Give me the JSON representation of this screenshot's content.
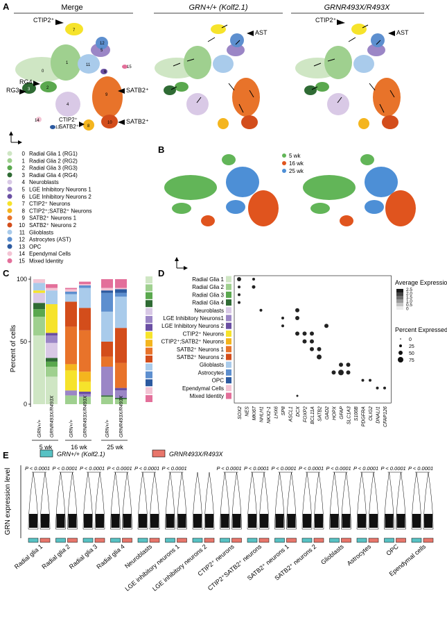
{
  "panels": {
    "A": {
      "letter": "A",
      "titles": [
        "Merge",
        "GRN+/+ (Kolf2.1)",
        "GRNR493X/R493X"
      ],
      "labels": {
        "ctip2": "CTIP2⁺",
        "ast": "AST",
        "satb2": "SATB2⁺",
        "rg4": "RG4",
        "rg3": "RG3",
        "ctip2_satb2_a": "CTIP2⁺",
        "ctip2_satb2_b": "SATB2⁺"
      },
      "cluster_numbers": [
        "0",
        "1",
        "2",
        "3",
        "4",
        "5",
        "6",
        "7",
        "8",
        "9",
        "10",
        "11",
        "12",
        "13",
        "14",
        "15"
      ],
      "legend": [
        {
          "num": "0",
          "label": "Radial Glia 1 (RG1)",
          "color": "#cfe6c4"
        },
        {
          "num": "1",
          "label": "Radial Glia 2 (RG2)",
          "color": "#9fd08f"
        },
        {
          "num": "2",
          "label": "Radial Glia 3 (RG3)",
          "color": "#5aa84e"
        },
        {
          "num": "3",
          "label": "Radial Glia 4 (RG4)",
          "color": "#2f6b34"
        },
        {
          "num": "4",
          "label": "Neuroblasts",
          "color": "#d9c9e6"
        },
        {
          "num": "5",
          "label": "LGE Inhibitory Neurons 1",
          "color": "#9b86c6"
        },
        {
          "num": "6",
          "label": "LGE Inhibitory Neurons 2",
          "color": "#6a4fa3"
        },
        {
          "num": "7",
          "label": "CTIP2⁺ Neurons",
          "color": "#f6e32b"
        },
        {
          "num": "8",
          "label": "CTIP2⁺;SATB2⁺ Neurons",
          "color": "#f4b51e"
        },
        {
          "num": "9",
          "label": "SATB2⁺ Neurons 1",
          "color": "#e8732a"
        },
        {
          "num": "10",
          "label": "SATB2⁺ Neurons 2",
          "color": "#d34d1b"
        },
        {
          "num": "11",
          "label": "Glioblasts",
          "color": "#a9cbeb"
        },
        {
          "num": "12",
          "label": "Astrocytes (AST)",
          "color": "#5d8fcf"
        },
        {
          "num": "13",
          "label": "OPC",
          "color": "#2c5aa0"
        },
        {
          "num": "14",
          "label": "Ependymal Cells",
          "color": "#f3c4d4"
        },
        {
          "num": "15",
          "label": "Mixed Identity",
          "color": "#e36f9a"
        }
      ]
    },
    "B": {
      "letter": "B",
      "legend": [
        {
          "label": "5 wk",
          "color": "#62b558"
        },
        {
          "label": "16 wk",
          "color": "#e0541e"
        },
        {
          "label": "25 wk",
          "color": "#4d8fd6"
        }
      ]
    },
    "C": {
      "letter": "C",
      "ylabel": "Percent of cells",
      "yticks": [
        "0",
        "50",
        "100"
      ],
      "timepoints": [
        "5 wk",
        "16 wk",
        "25 wk"
      ],
      "genotype_wt": "GRN+/+",
      "genotype_mut": "GRNR493X/R493X"
    },
    "D": {
      "letter": "D",
      "rows": [
        "Radial Glia 1",
        "Radial Glia 2",
        "Radial Glia 3",
        "Radial Glia 4",
        "Neuroblasts",
        "LGE Inhibitory Neurons1",
        "LGE Inhibitory Neurons 2",
        "CTIP2⁺ Neurons",
        "CTIP2⁺;SATB2⁺ Neurons",
        "SATB2⁺ Neurons 1",
        "SATB2⁺ Neurons 2",
        "Glioblasts",
        "Astrocytes",
        "OPC",
        "Ependymal Cells",
        "Mixed Identity"
      ],
      "genes": [
        "SOX2",
        "NES",
        "MKI67",
        "NHLH1",
        "NKX2-1",
        "LHX6",
        "SP8",
        "ASCL1",
        "DCX",
        "FOXP2",
        "BCL11A",
        "SATB2",
        "GAD2",
        "HOPX",
        "GFAP",
        "SLC1A3",
        "S100B",
        "PDGFRA",
        "OLIG2",
        "DNALI1",
        "CFAP126"
      ],
      "avg_title": "Average Expression",
      "avg_ticks": [
        "2.5",
        "2.0",
        "1.5",
        "1.0",
        "0.5",
        "0"
      ],
      "pct_title": "Percent Expressed",
      "pct_ticks": [
        "0",
        "25",
        "50",
        "75"
      ]
    },
    "E": {
      "letter": "E",
      "ylabel": "GRN expression level",
      "legend_wt": "GRN+/+ (Kolf2.1)",
      "legend_mut": "GRNR493X/R493X",
      "pvalue": "P < 0.0001",
      "groups": [
        "Radial glia 1",
        "Radial glia 2",
        "Radial glia 3",
        "Radial glia 4",
        "Neuroblasts",
        "LGE inhibitory neurons 1",
        "LGE inhibitory neurons 2",
        "CTIP2⁺ neurons",
        "CTIP2⁺SATB2⁺ neurons",
        "SATB2⁺ neurons 1",
        "SATB2⁺ neurons 2",
        "Glioblasts",
        "Astrocytes",
        "OPC",
        "Ependymal cells"
      ],
      "pvalue_groups": [
        0,
        1,
        2,
        3,
        4,
        5,
        7,
        8,
        9,
        10,
        11,
        12,
        13,
        14
      ],
      "colors": {
        "wt": "#58c2c4",
        "mut": "#e8766b"
      }
    }
  },
  "chart_data": {
    "type": "bar",
    "title": "",
    "ylabel": "Percent of cells",
    "ylim": [
      0,
      100
    ],
    "categories": [
      "5 wk GRN+/+",
      "5 wk GRNR493X/R493X",
      "16 wk GRN+/+",
      "16 wk GRNR493X/R493X",
      "25 wk GRN+/+",
      "25 wk GRNR493X/R493X"
    ],
    "series": [
      {
        "name": "Radial Glia 1 (RG1)",
        "values": [
          55,
          22,
          0,
          0,
          0,
          0
        ]
      },
      {
        "name": "Radial Glia 2 (RG2)",
        "values": [
          15,
          8,
          7,
          6,
          6,
          4
        ]
      },
      {
        "name": "Radial Glia 3 (RG3)",
        "values": [
          6,
          4,
          0,
          0,
          0,
          0
        ]
      },
      {
        "name": "Radial Glia 4 (RG4)",
        "values": [
          5,
          3,
          0,
          0,
          1,
          1
        ]
      },
      {
        "name": "Neuroblasts",
        "values": [
          8,
          12,
          0,
          0,
          0,
          0
        ]
      },
      {
        "name": "LGE Inhibitory Neurons 1",
        "values": [
          0,
          6,
          4,
          2,
          23,
          6
        ]
      },
      {
        "name": "LGE Inhibitory Neurons 2",
        "values": [
          0,
          2,
          0,
          2,
          0,
          2
        ]
      },
      {
        "name": "CTIP2⁺ Neurons",
        "values": [
          2,
          23,
          16,
          8,
          0,
          0
        ]
      },
      {
        "name": "CTIP2⁺;SATB2⁺ Neurons",
        "values": [
          0,
          0,
          5,
          8,
          0,
          0
        ]
      },
      {
        "name": "SATB2⁺ Neurons 1",
        "values": [
          0,
          0,
          30,
          33,
          8,
          20
        ]
      },
      {
        "name": "SATB2⁺ Neurons 2",
        "values": [
          0,
          0,
          20,
          18,
          12,
          28
        ]
      },
      {
        "name": "Glioblasts",
        "values": [
          6,
          11,
          6,
          16,
          24,
          25
        ]
      },
      {
        "name": "Astrocytes (AST)",
        "values": [
          0,
          0,
          2,
          2,
          15,
          3
        ]
      },
      {
        "name": "OPC",
        "values": [
          0,
          0,
          0,
          0,
          2,
          3
        ]
      },
      {
        "name": "Ependymal Cells",
        "values": [
          3,
          2,
          2,
          1,
          2,
          1
        ]
      },
      {
        "name": "Mixed Identity",
        "values": [
          0,
          3,
          1,
          2,
          7,
          7
        ]
      }
    ]
  }
}
